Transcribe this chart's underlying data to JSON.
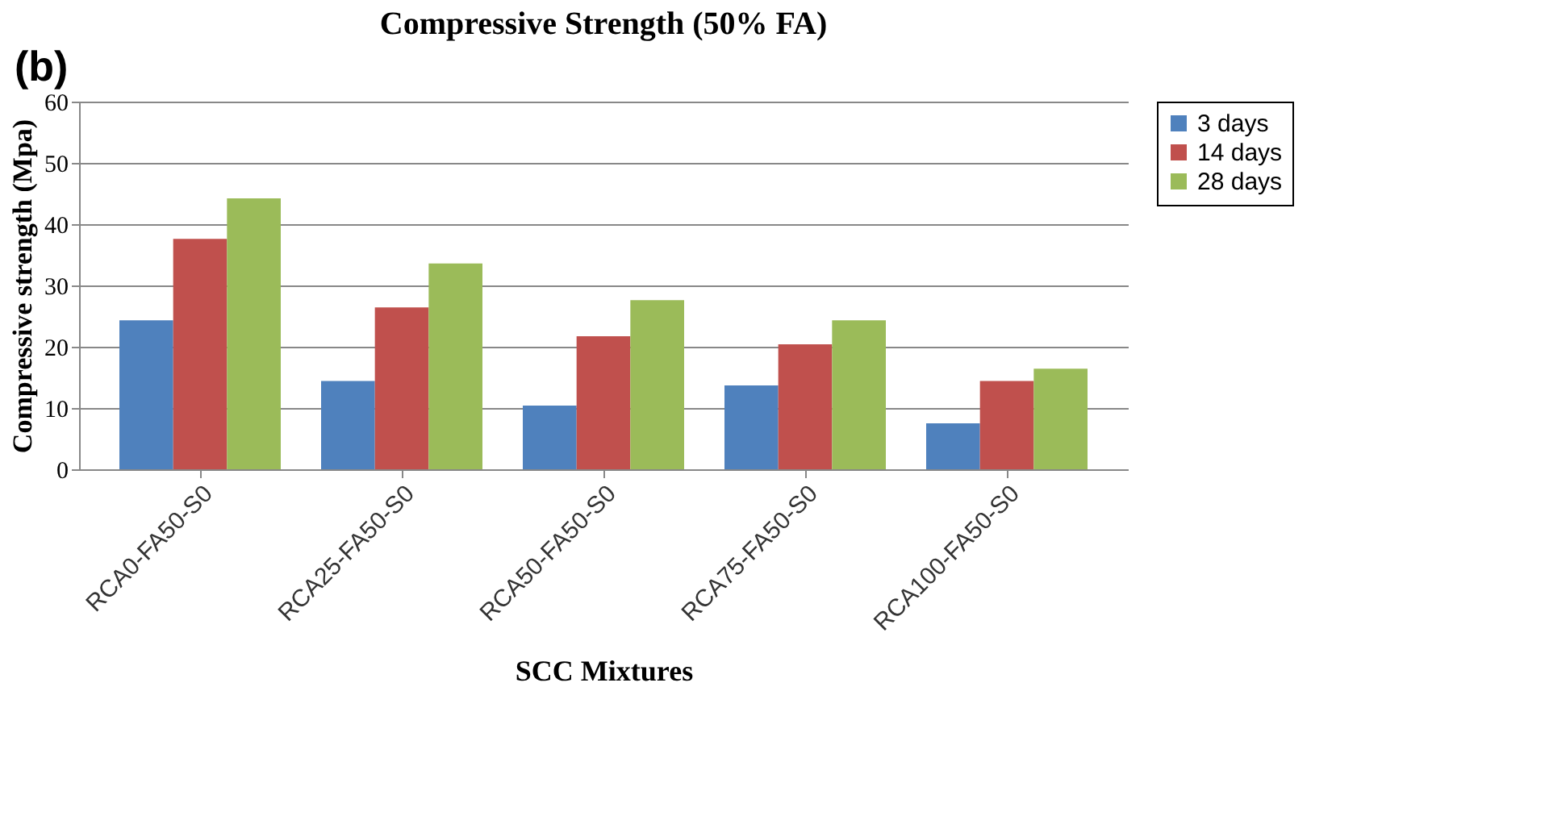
{
  "chart_data": {
    "type": "bar",
    "title": "Compressive Strength (50% FA)",
    "xlabel": "SCC Mixtures",
    "ylabel": "Compressive strength (Mpa)",
    "annotations": [
      "(b)"
    ],
    "categories": [
      "RCA0-FA50-S0",
      "RCA25-FA50-S0",
      "RCA50-FA50-S0",
      "RCA75-FA50-S0",
      "RCA100-FA50-S0"
    ],
    "series": [
      {
        "name": "3 days",
        "color": "#4f81bd",
        "values": [
          24.3,
          14.4,
          10.4,
          13.7,
          7.5
        ]
      },
      {
        "name": "14 days",
        "color": "#c0504d",
        "values": [
          37.6,
          26.4,
          21.7,
          20.4,
          14.4
        ]
      },
      {
        "name": "28 days",
        "color": "#9bbb59",
        "values": [
          44.2,
          33.6,
          27.6,
          24.3,
          16.4
        ]
      }
    ],
    "ylim": [
      0,
      60
    ],
    "yticks": [
      0,
      10,
      20,
      30,
      40,
      50,
      60
    ],
    "grid": "y",
    "legend": "right"
  }
}
